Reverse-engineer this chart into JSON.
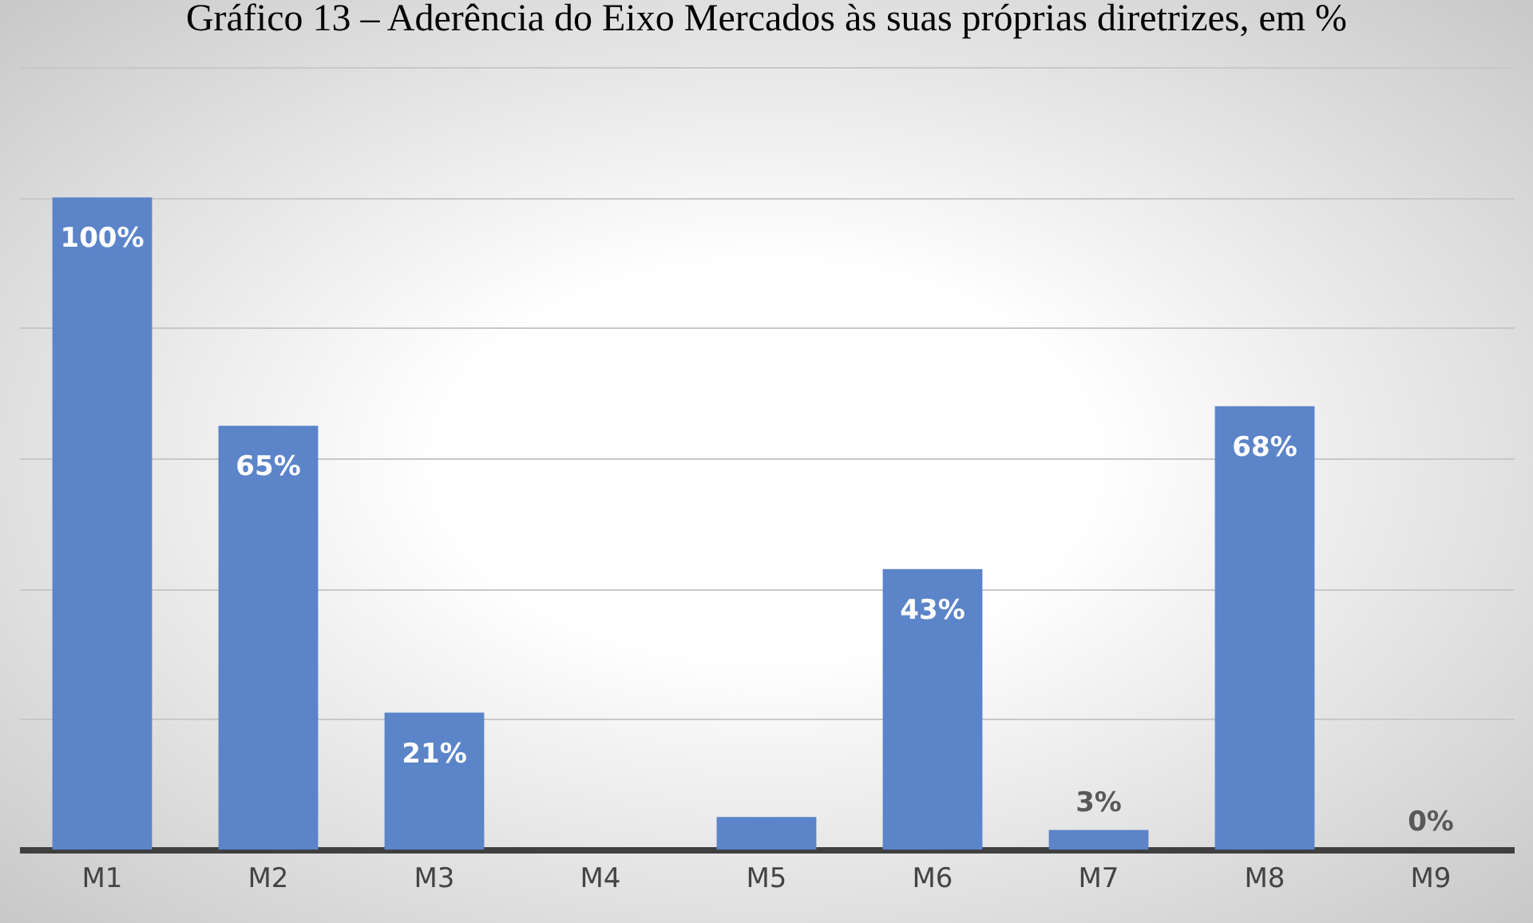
{
  "chart_data": {
    "type": "bar",
    "title": "Gráfico 13 – Aderência do Eixo Mercados às suas próprias diretrizes, em %",
    "categories": [
      "M1",
      "M2",
      "M3",
      "M4",
      "M5",
      "M6",
      "M7",
      "M8",
      "M9"
    ],
    "values": [
      100,
      65,
      21,
      0,
      5,
      43,
      3,
      68,
      0
    ],
    "value_labels": [
      "100%",
      "65%",
      "21%",
      null,
      null,
      "43%",
      "3%",
      "68%",
      "0%"
    ],
    "color": "#5b84c9",
    "ylim": [
      0,
      120
    ],
    "yticks": [
      {
        "value": 0,
        "label": null
      },
      {
        "value": 20,
        "label": null
      },
      {
        "value": 40,
        "label": null
      },
      {
        "value": 60,
        "label": null
      },
      {
        "value": 80,
        "label": null
      },
      {
        "value": 100,
        "label": null
      },
      {
        "value": 120,
        "label": null
      }
    ],
    "grid": "y",
    "tick_labels": "x"
  }
}
